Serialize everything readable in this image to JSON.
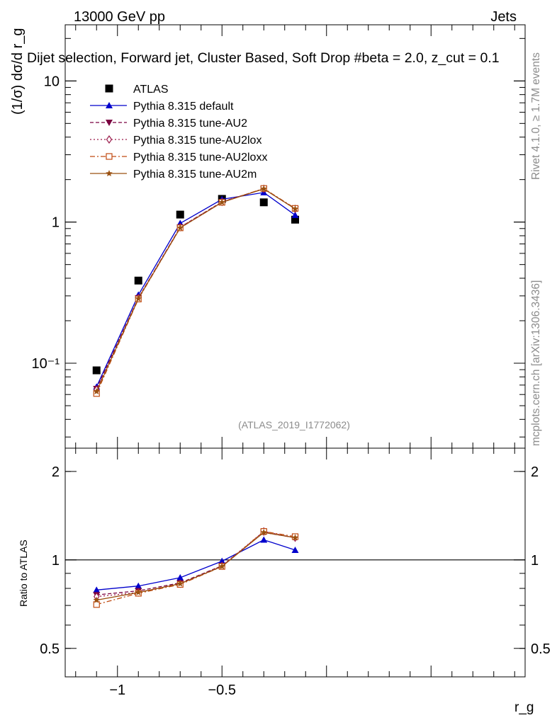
{
  "header": {
    "left": "13000 GeV pp",
    "right": "Jets",
    "selection": "Dijet selection, Forward jet, Cluster Based, Soft Drop #beta = 2.0, z_cut = 0.1"
  },
  "side_labels": {
    "rivet": "Rivet 4.1.0, ≥ 1.7M events",
    "mcplots": "mcplots.cern.ch [arXiv:1306.3436]"
  },
  "colors": {
    "atlas": "#000000",
    "default": "#0000cc",
    "au2": "#7a0040",
    "au2lox": "#9a1a4a",
    "au2loxx": "#c04a10",
    "au2m": "#9a5010"
  },
  "chart_data": [
    {
      "type": "line",
      "panel": "main",
      "analysis_label": "(ATLAS_2019_I1772062)",
      "ylabel": "(1/σ) dσ/d r_g",
      "yscale": "log",
      "ylim": [
        0.025,
        25
      ],
      "xlim": [
        -1.25,
        0.95
      ],
      "y_ticks": [
        {
          "value": 0.1,
          "label": "10⁻¹"
        },
        {
          "value": 1,
          "label": "1"
        },
        {
          "value": 10,
          "label": "10"
        }
      ],
      "legend_position": "top-left",
      "series": [
        {
          "name": "ATLAS",
          "key": "atlas",
          "style": "square",
          "x": [
            -1.1,
            -0.9,
            -0.7,
            -0.5,
            -0.3,
            -0.15
          ],
          "values": [
            0.089,
            0.385,
            1.13,
            1.46,
            1.38,
            1.04
          ]
        },
        {
          "name": "Pythia 8.315 default",
          "key": "default",
          "style": "solid",
          "marker": "triangle",
          "x": [
            -1.1,
            -0.9,
            -0.7,
            -0.5,
            -0.3,
            -0.15
          ],
          "values": [
            0.068,
            0.305,
            0.98,
            1.45,
            1.62,
            1.12
          ]
        },
        {
          "name": "Pythia 8.315 tune-AU2",
          "key": "au2",
          "style": "dashed",
          "marker": "triangle-down",
          "x": [
            -1.1,
            -0.9,
            -0.7,
            -0.5,
            -0.3,
            -0.15
          ],
          "values": [
            0.066,
            0.29,
            0.92,
            1.39,
            1.72,
            1.24
          ]
        },
        {
          "name": "Pythia 8.315 tune-AU2lox",
          "key": "au2lox",
          "style": "dotted",
          "marker": "diamond",
          "x": [
            -1.1,
            -0.9,
            -0.7,
            -0.5,
            -0.3,
            -0.15
          ],
          "values": [
            0.065,
            0.29,
            0.92,
            1.39,
            1.72,
            1.24
          ]
        },
        {
          "name": "Pythia 8.315 tune-AU2loxx",
          "key": "au2loxx",
          "style": "dashdot",
          "marker": "square-open",
          "x": [
            -1.1,
            -0.9,
            -0.7,
            -0.5,
            -0.3,
            -0.15
          ],
          "values": [
            0.061,
            0.285,
            0.91,
            1.38,
            1.73,
            1.25
          ]
        },
        {
          "name": "Pythia 8.315 tune-AU2m",
          "key": "au2m",
          "style": "solid",
          "marker": "star",
          "x": [
            -1.1,
            -0.9,
            -0.7,
            -0.5,
            -0.3,
            -0.15
          ],
          "values": [
            0.063,
            0.287,
            0.91,
            1.38,
            1.72,
            1.24
          ]
        }
      ]
    },
    {
      "type": "line",
      "panel": "ratio",
      "ylabel": "Ratio to ATLAS",
      "xlabel": "r_g",
      "yscale": "log",
      "ylim": [
        0.4,
        2.4
      ],
      "xlim": [
        -1.25,
        0.95
      ],
      "y_ticks": [
        {
          "value": 0.5,
          "label": "0.5"
        },
        {
          "value": 1,
          "label": "1"
        },
        {
          "value": 2,
          "label": "2"
        }
      ],
      "x_ticks": [
        {
          "value": -1,
          "label": "−1"
        },
        {
          "value": -0.5,
          "label": "−0.5"
        }
      ],
      "reference_line": 1,
      "series": [
        {
          "name": "Pythia 8.315 default",
          "key": "default",
          "style": "solid",
          "marker": "triangle",
          "x": [
            -1.1,
            -0.9,
            -0.7,
            -0.5,
            -0.3,
            -0.15
          ],
          "values": [
            0.79,
            0.815,
            0.87,
            0.99,
            1.17,
            1.08
          ]
        },
        {
          "name": "Pythia 8.315 tune-AU2",
          "key": "au2",
          "style": "dashed",
          "marker": "triangle-down",
          "x": [
            -1.1,
            -0.9,
            -0.7,
            -0.5,
            -0.3,
            -0.15
          ],
          "values": [
            0.76,
            0.785,
            0.835,
            0.955,
            1.24,
            1.19
          ]
        },
        {
          "name": "Pythia 8.315 tune-AU2lox",
          "key": "au2lox",
          "style": "dotted",
          "marker": "diamond",
          "x": [
            -1.1,
            -0.9,
            -0.7,
            -0.5,
            -0.3,
            -0.15
          ],
          "values": [
            0.75,
            0.775,
            0.83,
            0.955,
            1.25,
            1.19
          ]
        },
        {
          "name": "Pythia 8.315 tune-AU2loxx",
          "key": "au2loxx",
          "style": "dashdot",
          "marker": "square-open",
          "x": [
            -1.1,
            -0.9,
            -0.7,
            -0.5,
            -0.3,
            -0.15
          ],
          "values": [
            0.705,
            0.77,
            0.825,
            0.95,
            1.25,
            1.2
          ]
        },
        {
          "name": "Pythia 8.315 tune-AU2m",
          "key": "au2m",
          "style": "solid",
          "marker": "star",
          "x": [
            -1.1,
            -0.9,
            -0.7,
            -0.5,
            -0.3,
            -0.15
          ],
          "values": [
            0.73,
            0.775,
            0.83,
            0.95,
            1.24,
            1.19
          ]
        }
      ]
    }
  ]
}
